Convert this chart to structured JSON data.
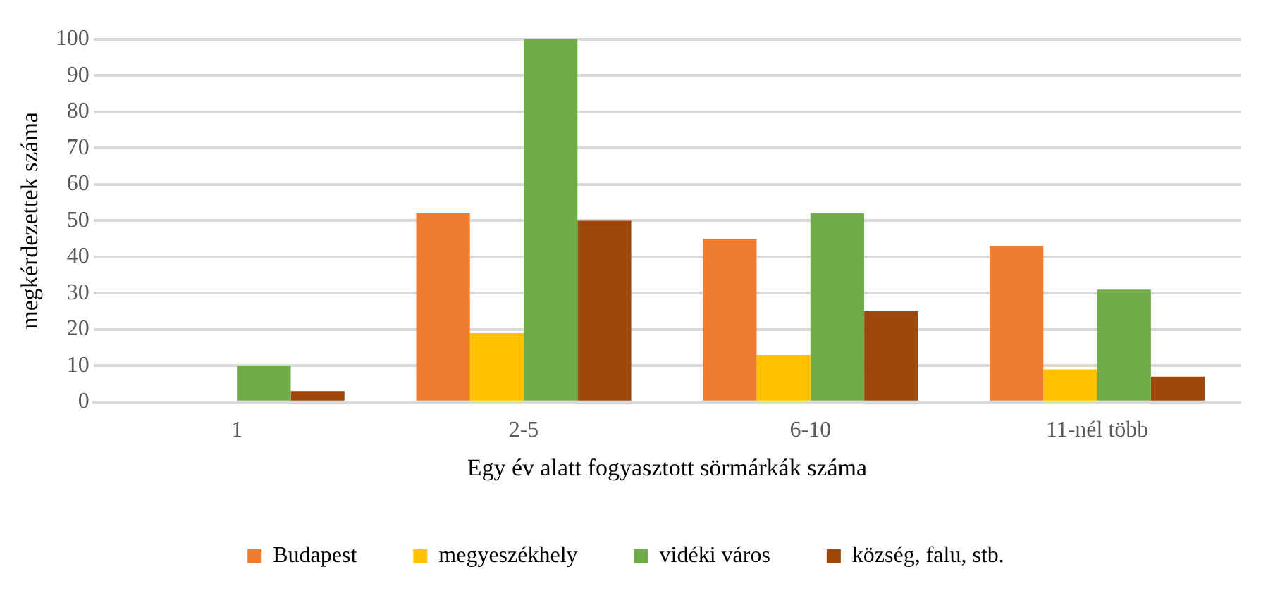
{
  "chart_data": {
    "type": "bar",
    "xlabel": "Egy év alatt fogyasztott sörmárkák száma",
    "ylabel": "megkérdezettek száma",
    "categories": [
      "1",
      "2-5",
      "6-10",
      "11-nél több"
    ],
    "series": [
      {
        "name": "Budapest",
        "color": "#ed7d31",
        "values": [
          0,
          52,
          45,
          43
        ]
      },
      {
        "name": "megyeszékhely",
        "color": "#ffc000",
        "values": [
          0,
          19,
          13,
          9
        ]
      },
      {
        "name": "vidéki város",
        "color": "#70ad47",
        "values": [
          10,
          100,
          52,
          31
        ]
      },
      {
        "name": "község, falu, stb.",
        "color": "#9e480e",
        "values": [
          3,
          50,
          25,
          7
        ]
      }
    ],
    "ylim": [
      0,
      100
    ],
    "yticks": [
      0,
      10,
      20,
      30,
      40,
      50,
      60,
      70,
      80,
      90,
      100
    ],
    "grid": "y",
    "legend": "bottom"
  }
}
